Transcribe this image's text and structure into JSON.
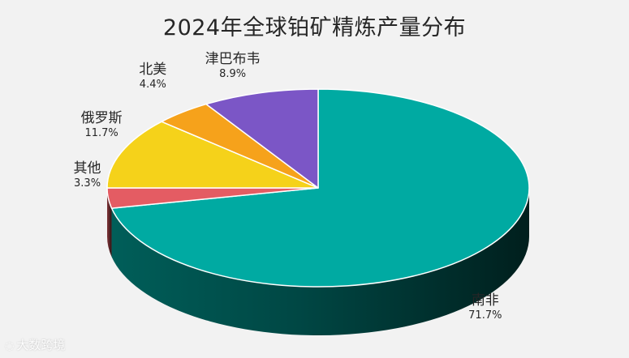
{
  "chart_data": {
    "type": "pie",
    "title": "2024年全球铂矿精炼产量分布",
    "categories": [
      "南非",
      "其他",
      "俄罗斯",
      "北美",
      "津巴布韦"
    ],
    "values": [
      71.7,
      3.3,
      11.7,
      4.4,
      8.9
    ],
    "value_labels": [
      "71.7%",
      "3.3%",
      "11.7%",
      "4.4%",
      "8.9%"
    ],
    "colors": [
      "#00aaa2",
      "#e45c63",
      "#f5d21a",
      "#f6a21b",
      "#7b56c6"
    ],
    "style": "3d-pie"
  },
  "watermark": {
    "text": "大数跨境",
    "icon": "logo-icon"
  }
}
